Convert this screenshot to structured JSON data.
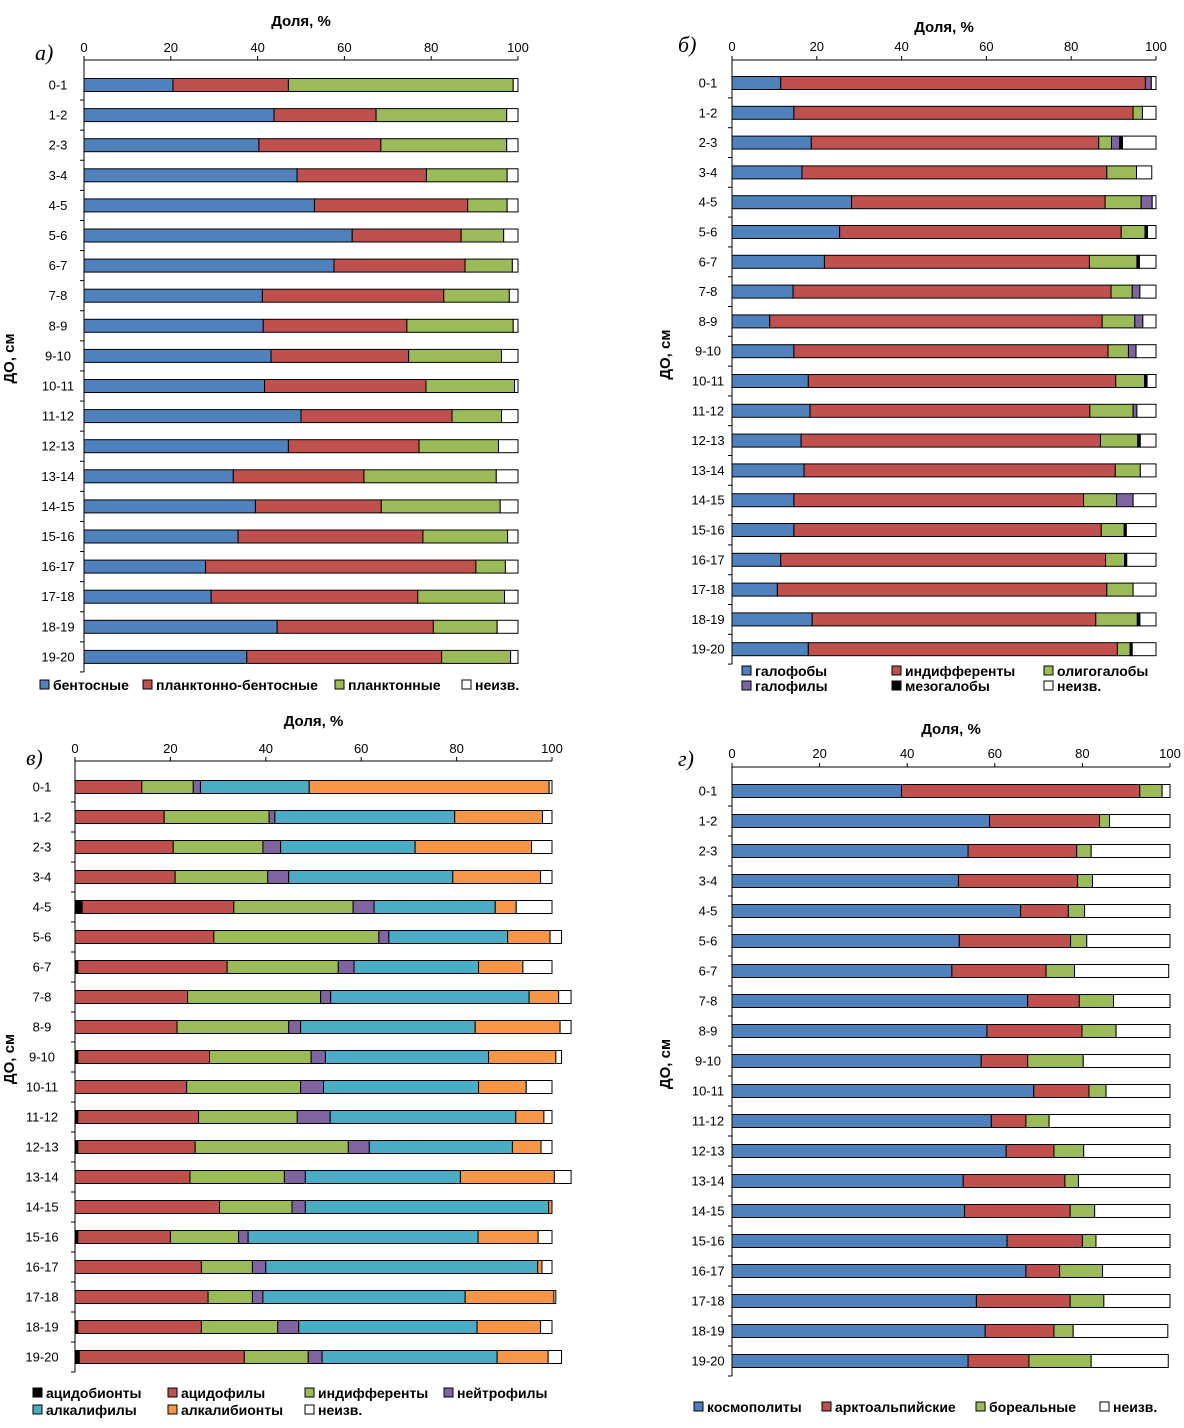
{
  "chart_data": [
    {
      "type": "bar",
      "orientation": "horizontal",
      "stacked": true,
      "panel_label": "а)",
      "xlabel": "Доля, %",
      "ylabel": "ДО, см",
      "xlim": [
        0,
        100
      ],
      "xticks": [
        "0",
        "20",
        "40",
        "60",
        "80",
        "100"
      ],
      "categories": [
        "0-1",
        "1-2",
        "2-3",
        "3-4",
        "4-5",
        "5-6",
        "6-7",
        "7-8",
        "8-9",
        "9-10",
        "10-11",
        "11-12",
        "12-13",
        "13-14",
        "14-15",
        "15-16",
        "16-17",
        "17-18",
        "18-19",
        "19-20"
      ],
      "series": [
        {
          "name": "бентосные",
          "color": "#4F81BD",
          "values": [
            20.5,
            43.8,
            40.3,
            49.1,
            53.1,
            61.8,
            57.6,
            41.1,
            41.3,
            43.1,
            41.6,
            50.0,
            47.1,
            34.4,
            39.5,
            35.5,
            28.0,
            29.3,
            44.5,
            37.5
          ]
        },
        {
          "name": "планктонно-бентосные",
          "color": "#C0504D",
          "values": [
            26.6,
            23.5,
            28.1,
            29.8,
            35.3,
            25.1,
            30.2,
            41.8,
            33.1,
            31.7,
            37.2,
            34.8,
            30.1,
            30.1,
            29.0,
            42.6,
            62.3,
            47.6,
            36.0,
            44.9
          ]
        },
        {
          "name": "планктонные",
          "color": "#9BBB59",
          "values": [
            51.8,
            30.1,
            29.0,
            18.6,
            9.1,
            9.8,
            10.9,
            15.1,
            24.5,
            21.4,
            20.4,
            11.4,
            18.3,
            30.5,
            27.4,
            19.5,
            6.8,
            20.0,
            14.7,
            15.9
          ]
        },
        {
          "name": "неизв.",
          "color": "#FFFFFF",
          "values": [
            1.1,
            2.6,
            2.6,
            2.5,
            2.5,
            3.3,
            1.3,
            2.0,
            1.1,
            3.8,
            0.8,
            3.8,
            4.5,
            5.0,
            4.1,
            2.4,
            2.9,
            3.1,
            4.8,
            1.7
          ]
        }
      ]
    },
    {
      "type": "bar",
      "orientation": "horizontal",
      "stacked": true,
      "panel_label": "б)",
      "xlabel": "Доля, %",
      "ylabel": "ДО, см",
      "xlim": [
        0,
        100
      ],
      "xticks": [
        "0",
        "20",
        "40",
        "60",
        "80",
        "100"
      ],
      "categories": [
        "0-1",
        "1-2",
        "2-3",
        "3-4",
        "4-5",
        "5-6",
        "6-7",
        "7-8",
        "8-9",
        "9-10",
        "10-11",
        "11-12",
        "12-13",
        "13-14",
        "14-15",
        "15-16",
        "16-17",
        "17-18",
        "18-19",
        "19-20"
      ],
      "series": [
        {
          "name": "галофобы",
          "color": "#4F81BD",
          "values": [
            11.5,
            14.6,
            18.7,
            16.5,
            28.2,
            25.4,
            21.8,
            14.4,
            8.9,
            14.6,
            18.0,
            18.4,
            16.3,
            17.0,
            14.6,
            14.6,
            11.5,
            10.7,
            18.9,
            18.0
          ]
        },
        {
          "name": "индифференты",
          "color": "#C0504D",
          "values": [
            86.0,
            80.0,
            67.8,
            71.9,
            59.8,
            66.4,
            62.5,
            75.0,
            78.4,
            74.1,
            72.5,
            66.0,
            70.6,
            73.4,
            68.3,
            72.5,
            76.6,
            77.7,
            66.9,
            72.9
          ]
        },
        {
          "name": "олигогалобы",
          "color": "#9BBB59",
          "values": [
            0.0,
            2.2,
            3.0,
            7.0,
            8.5,
            5.6,
            11.2,
            5.0,
            7.7,
            4.8,
            6.8,
            10.2,
            8.8,
            5.9,
            7.8,
            5.4,
            4.5,
            6.2,
            9.8,
            3.0
          ]
        },
        {
          "name": "галофилы",
          "color": "#8064A2",
          "values": [
            1.4,
            0.0,
            1.9,
            0.0,
            2.6,
            0.0,
            0.0,
            1.8,
            1.9,
            1.8,
            0.0,
            0.9,
            0.0,
            0.0,
            3.9,
            0.0,
            0.0,
            0.0,
            0.0,
            0.0
          ]
        },
        {
          "name": "мезогалобы",
          "color": "#000000",
          "values": [
            0.0,
            0.0,
            0.7,
            0.0,
            0.0,
            0.6,
            0.6,
            0.0,
            0.0,
            0.0,
            0.6,
            0.0,
            0.6,
            0.0,
            0.0,
            0.5,
            0.5,
            0.0,
            0.6,
            0.5
          ]
        },
        {
          "name": "неизв.",
          "color": "#FFFFFF",
          "values": [
            1.1,
            3.2,
            7.9,
            3.6,
            0.9,
            2.0,
            3.9,
            3.8,
            3.1,
            4.7,
            2.1,
            4.5,
            3.7,
            3.7,
            5.4,
            7.0,
            6.9,
            5.4,
            3.8,
            5.6
          ]
        }
      ]
    },
    {
      "type": "bar",
      "orientation": "horizontal",
      "stacked": true,
      "panel_label": "в)",
      "xlabel": "Доля, %",
      "ylabel": "ДО, см",
      "xlim": [
        0,
        100
      ],
      "xticks": [
        "0",
        "20",
        "40",
        "60",
        "80",
        "100"
      ],
      "categories": [
        "0-1",
        "1-2",
        "2-3",
        "3-4",
        "4-5",
        "5-6",
        "6-7",
        "7-8",
        "8-9",
        "9-10",
        "10-11",
        "11-12",
        "12-13",
        "13-14",
        "14-15",
        "15-16",
        "16-17",
        "17-18",
        "18-19",
        "19-20"
      ],
      "series": [
        {
          "name": "ацидобионты",
          "color": "#000000",
          "values": [
            0.0,
            0.0,
            0.0,
            0.0,
            1.5,
            0.0,
            0.6,
            0.0,
            0.0,
            0.6,
            0.0,
            0.6,
            0.6,
            0.0,
            0.0,
            0.6,
            0.0,
            0.0,
            0.6,
            0.9
          ]
        },
        {
          "name": "ацидофилы",
          "color": "#C0504D",
          "values": [
            14.0,
            18.7,
            20.6,
            21.0,
            31.8,
            29.1,
            31.3,
            23.6,
            21.4,
            27.6,
            23.4,
            25.3,
            24.6,
            24.1,
            30.3,
            19.4,
            26.5,
            27.9,
            25.9,
            34.6
          ]
        },
        {
          "name": "индифференты",
          "color": "#9BBB59",
          "values": [
            10.8,
            22.0,
            18.8,
            19.4,
            25.0,
            34.6,
            23.3,
            27.9,
            23.4,
            21.3,
            23.9,
            20.7,
            32.1,
            19.8,
            15.2,
            14.3,
            10.7,
            9.3,
            16.0,
            13.4
          ]
        },
        {
          "name": "нейтрофилы",
          "color": "#8064A2",
          "values": [
            1.5,
            1.2,
            3.7,
            4.4,
            4.4,
            2.1,
            3.3,
            2.1,
            2.5,
            3.0,
            4.8,
            6.9,
            4.4,
            4.4,
            2.8,
            2.0,
            2.8,
            2.2,
            4.4,
            2.9
          ]
        },
        {
          "name": "алкалифилы",
          "color": "#4BACC6",
          "values": [
            22.8,
            37.7,
            28.2,
            34.4,
            25.4,
            24.9,
            26.1,
            41.6,
            36.6,
            34.2,
            32.5,
            38.9,
            30.0,
            32.5,
            51.0,
            48.2,
            57.0,
            42.4,
            37.4,
            36.7
          ]
        },
        {
          "name": "алкалибионты",
          "color": "#F79646",
          "values": [
            50.3,
            18.4,
            24.4,
            18.4,
            4.4,
            8.9,
            9.3,
            6.2,
            17.8,
            14.1,
            10.0,
            5.9,
            6.0,
            19.7,
            0.7,
            12.6,
            0.9,
            18.6,
            13.3,
            10.7
          ]
        },
        {
          "name": "неизв.",
          "color": "#FFFFFF",
          "values": [
            0.6,
            2.0,
            4.3,
            2.4,
            7.5,
            2.4,
            6.1,
            2.6,
            2.3,
            1.2,
            5.4,
            1.7,
            2.3,
            3.5,
            0.0,
            2.9,
            2.1,
            0.4,
            2.4,
            2.8
          ]
        }
      ]
    },
    {
      "type": "bar",
      "orientation": "horizontal",
      "stacked": true,
      "panel_label": "г)",
      "xlabel": "Доля, %",
      "ylabel": "ДО, см",
      "xlim": [
        0,
        100
      ],
      "xticks": [
        "0",
        "20",
        "40",
        "60",
        "80",
        "100"
      ],
      "categories": [
        "0-1",
        "1-2",
        "2-3",
        "3-4",
        "4-5",
        "5-6",
        "6-7",
        "7-8",
        "8-9",
        "9-10",
        "10-11",
        "11-12",
        "12-13",
        "13-14",
        "14-15",
        "15-16",
        "16-17",
        "17-18",
        "18-19",
        "19-20"
      ],
      "series": [
        {
          "name": "космополиты",
          "color": "#4F81BD",
          "values": [
            38.7,
            58.8,
            53.9,
            51.7,
            65.9,
            51.9,
            50.2,
            67.5,
            58.2,
            56.9,
            68.9,
            59.2,
            62.6,
            52.8,
            53.1,
            62.8,
            67.1,
            55.8,
            57.8,
            53.9
          ]
        },
        {
          "name": "арктоальпийские",
          "color": "#C0504D",
          "values": [
            54.4,
            25.1,
            24.8,
            27.2,
            10.9,
            25.4,
            21.5,
            11.8,
            21.7,
            10.6,
            12.6,
            7.9,
            10.9,
            23.2,
            24.1,
            17.2,
            7.7,
            21.4,
            15.7,
            13.9
          ]
        },
        {
          "name": "бореальные",
          "color": "#9BBB59",
          "values": [
            5.1,
            2.3,
            3.3,
            3.4,
            3.7,
            3.7,
            6.5,
            7.8,
            7.8,
            12.7,
            3.9,
            5.3,
            6.8,
            3.1,
            5.6,
            3.1,
            9.8,
            7.7,
            4.4,
            14.2
          ]
        },
        {
          "name": "неизв.",
          "color": "#FFFFFF",
          "values": [
            1.8,
            13.8,
            18.0,
            17.7,
            19.5,
            19.0,
            21.5,
            12.9,
            12.3,
            19.8,
            14.6,
            27.6,
            19.7,
            20.9,
            17.2,
            16.9,
            15.4,
            15.1,
            21.6,
            17.6
          ]
        }
      ]
    }
  ]
}
